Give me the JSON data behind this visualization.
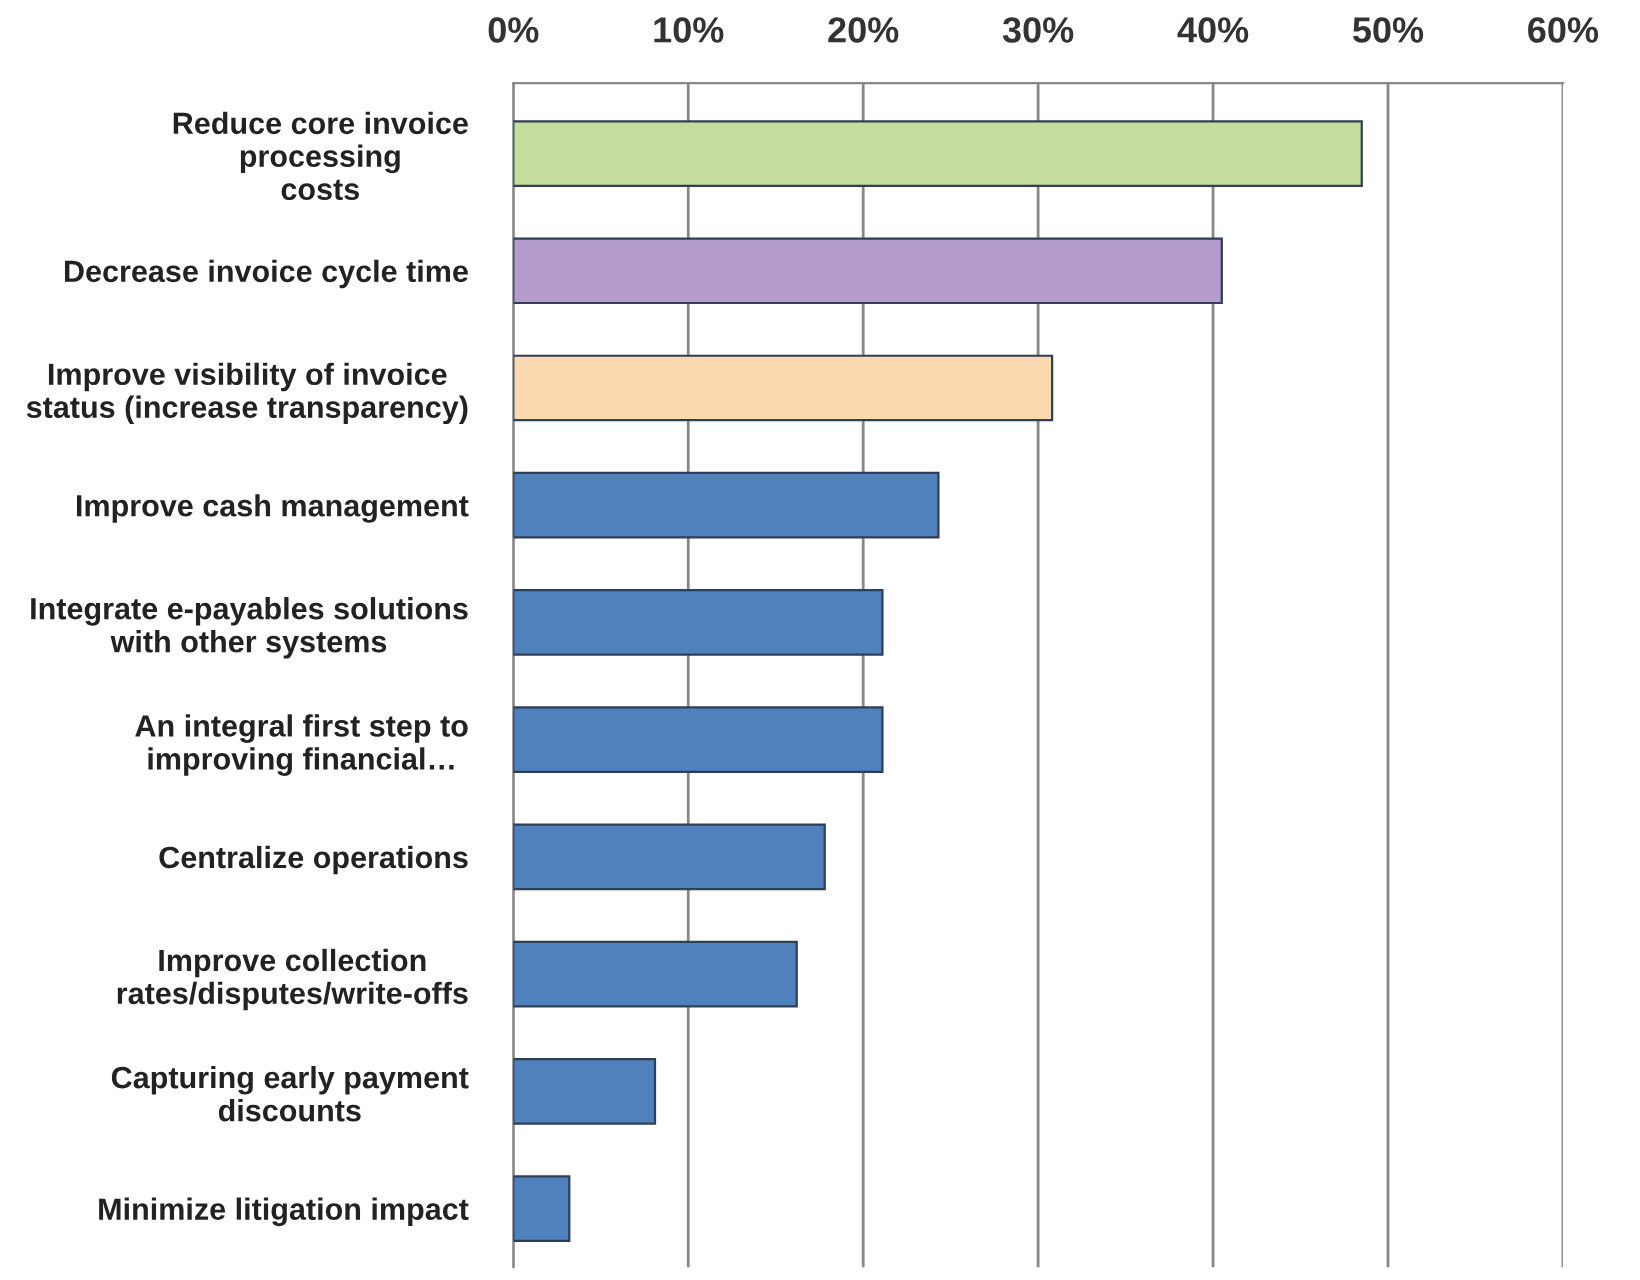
{
  "chart_data": {
    "type": "bar",
    "orientation": "horizontal",
    "categories": [
      "Reduce core invoice processing costs",
      "Decrease invoice cycle time",
      "Improve visibility of invoice status (increase transparency)",
      "Improve cash management",
      "Integrate e-payables solutions with other systems",
      "An integral first step to improving financial…",
      "Centralize operations",
      "Improve collection rates/disputes/write-offs",
      "Capturing early payment discounts",
      "Minimize litigation impact"
    ],
    "values": [
      48.5,
      40.5,
      30.8,
      24.3,
      21.1,
      21.1,
      17.8,
      16.2,
      8.1,
      3.2
    ],
    "colors": [
      "#c4dc9c",
      "#b49cce",
      "#fad8b0",
      "#4f81bd",
      "#4f81bd",
      "#4f81bd",
      "#4f81bd",
      "#4f81bd",
      "#4f81bd",
      "#4f81bd"
    ],
    "xlim": [
      0,
      60
    ],
    "xticks": [
      {
        "value": 0,
        "label": "0%"
      },
      {
        "value": 10,
        "label": "10%"
      },
      {
        "value": 20,
        "label": "20%"
      },
      {
        "value": 30,
        "label": "30%"
      },
      {
        "value": 40,
        "label": "40%"
      },
      {
        "value": 50,
        "label": "50%"
      },
      {
        "value": 60,
        "label": "60%"
      }
    ],
    "grid": "x"
  }
}
